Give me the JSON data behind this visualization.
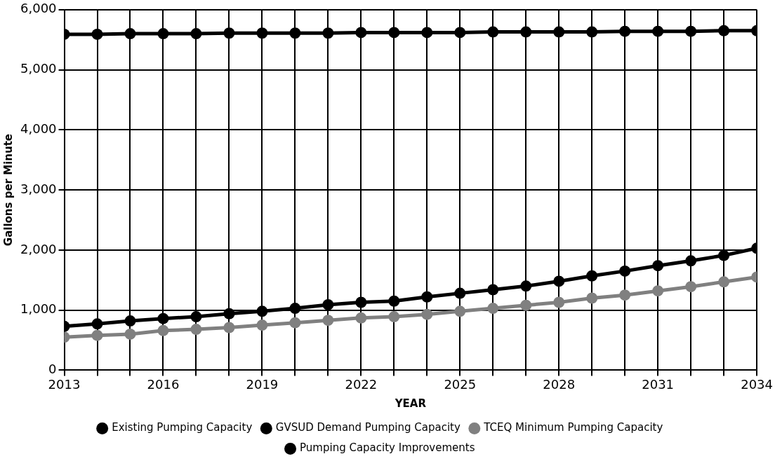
{
  "chart_data": {
    "type": "line",
    "xlabel": "YEAR",
    "ylabel": "Gallons per Minute",
    "x": [
      2013,
      2014,
      2015,
      2016,
      2017,
      2018,
      2019,
      2020,
      2021,
      2022,
      2023,
      2024,
      2025,
      2026,
      2027,
      2028,
      2029,
      2030,
      2031,
      2032,
      2033,
      2034
    ],
    "series": [
      {
        "name": "Existing Pumping Capacity",
        "color": "#000000",
        "values": [
          5590,
          5590,
          5600,
          5600,
          5600,
          5610,
          5610,
          5610,
          5610,
          5620,
          5620,
          5620,
          5620,
          5630,
          5630,
          5630,
          5630,
          5640,
          5640,
          5640,
          5650,
          5650
        ]
      },
      {
        "name": "GVSUD Demand Pumping Capacity",
        "color": "#000000",
        "values": [
          730,
          770,
          820,
          860,
          890,
          940,
          980,
          1030,
          1090,
          1130,
          1150,
          1220,
          1280,
          1340,
          1400,
          1480,
          1570,
          1650,
          1740,
          1820,
          1910,
          2030
        ]
      },
      {
        "name": "TCEQ Minimum Pumping Capacity",
        "color": "#808080",
        "values": [
          550,
          580,
          600,
          660,
          680,
          710,
          750,
          790,
          830,
          870,
          890,
          930,
          980,
          1030,
          1080,
          1130,
          1200,
          1250,
          1320,
          1390,
          1470,
          1550
        ]
      },
      {
        "name": "Pumping Capacity Improvements",
        "color": "#000000",
        "values": [
          null,
          null,
          null,
          null,
          null,
          null,
          null,
          null,
          null,
          null,
          null,
          null,
          null,
          null,
          null,
          null,
          null,
          null,
          null,
          null,
          null,
          null
        ]
      }
    ],
    "xlim": [
      2013,
      2034
    ],
    "xticks": [
      2013,
      {
        "value": 2014,
        "label": null
      },
      {
        "value": 2015,
        "label": null
      },
      2016,
      {
        "value": 2017,
        "label": null
      },
      {
        "value": 2018,
        "label": null
      },
      2019,
      {
        "value": 2020,
        "label": null
      },
      {
        "value": 2021,
        "label": null
      },
      2022,
      {
        "value": 2023,
        "label": null
      },
      {
        "value": 2024,
        "label": null
      },
      2025,
      {
        "value": 2026,
        "label": null
      },
      {
        "value": 2027,
        "label": null
      },
      2028,
      {
        "value": 2029,
        "label": null
      },
      {
        "value": 2030,
        "label": null
      },
      2031,
      {
        "value": 2032,
        "label": null
      },
      {
        "value": 2033,
        "label": null
      },
      2034
    ],
    "ylim": [
      0,
      6000
    ],
    "yticks": [
      {
        "value": 0,
        "label": "0"
      },
      {
        "value": 1000,
        "label": "1,000"
      },
      {
        "value": 2000,
        "label": "2,000"
      },
      {
        "value": 3000,
        "label": "3,000"
      },
      {
        "value": 4000,
        "label": "4,000"
      },
      {
        "value": 5000,
        "label": "5,000"
      },
      {
        "value": 6000,
        "label": "6,000"
      }
    ],
    "grid": true,
    "legend": "bottom",
    "marker": "circle",
    "line_style": "solid"
  }
}
